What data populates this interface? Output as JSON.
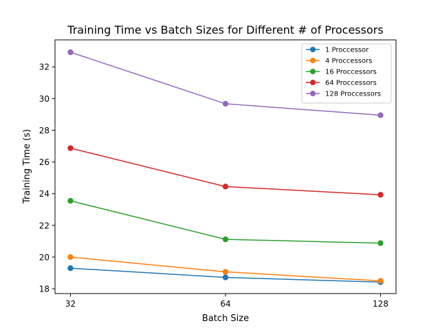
{
  "chart_data": {
    "type": "line",
    "title": "Training Time vs Batch Sizes for Different # of Processors",
    "xlabel": "Batch Size",
    "ylabel": "Training Time (s)",
    "categories": [
      "32",
      "64",
      "128"
    ],
    "x": [
      32,
      64,
      128
    ],
    "x_scale": "categorical",
    "ylim": [
      17.7,
      33.7
    ],
    "yticks": [
      18,
      20,
      22,
      24,
      26,
      28,
      30,
      32
    ],
    "grid": false,
    "legend_position": "top-right",
    "series": [
      {
        "name": "1 Proccessor",
        "values": [
          19.3,
          18.72,
          18.42
        ],
        "color": "#1f77b4"
      },
      {
        "name": "4 Proccessors",
        "values": [
          20.0,
          19.07,
          18.5
        ],
        "color": "#ff7f0e"
      },
      {
        "name": "16 Proccessors",
        "values": [
          23.55,
          21.12,
          20.88
        ],
        "color": "#2ca02c"
      },
      {
        "name": "64 Proccessors",
        "values": [
          26.87,
          24.45,
          23.93
        ],
        "color": "#d62728"
      },
      {
        "name": "128 Proccessors",
        "values": [
          32.92,
          29.67,
          28.95
        ],
        "color": "#9467bd"
      }
    ]
  }
}
